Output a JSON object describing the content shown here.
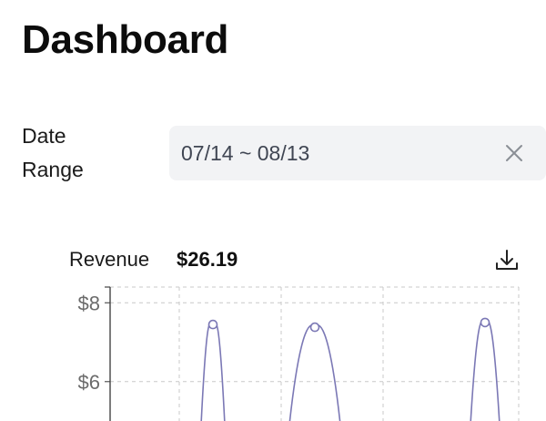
{
  "header": {
    "title": "Dashboard"
  },
  "filters": {
    "date_range_label": "Date Range",
    "date_range_value": "07/14 ~ 08/13",
    "clear_icon": "close-icon"
  },
  "revenue": {
    "label": "Revenue",
    "total": "$26.19",
    "download_icon": "download-icon"
  },
  "colors": {
    "line": "#7b78b5",
    "grid": "#c8c8c8",
    "field_bg": "#f2f3f5"
  },
  "chart_data": {
    "type": "line",
    "y_ticks": [
      {
        "value": 8,
        "label": "$8"
      },
      {
        "value": 6,
        "label": "$6"
      }
    ],
    "y_visible_range": [
      5.0,
      8.4
    ],
    "x_gridlines": 4,
    "grid": "dashed",
    "series": [
      {
        "values": [
          7.45,
          7.38,
          7.5
        ]
      }
    ]
  }
}
